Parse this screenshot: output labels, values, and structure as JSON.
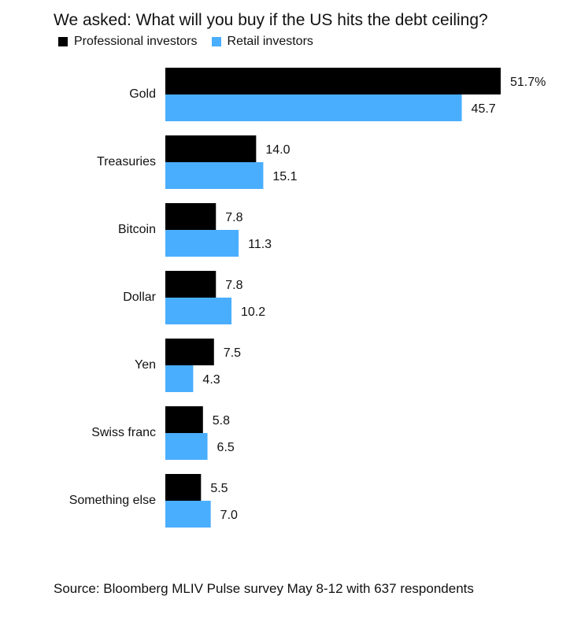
{
  "chart_data": {
    "type": "bar",
    "orientation": "horizontal",
    "title": "We asked: What will you buy if the US hits the debt ceiling?",
    "categories": [
      "Gold",
      "Treasuries",
      "Bitcoin",
      "Dollar",
      "Yen",
      "Swiss franc",
      "Something else"
    ],
    "series": [
      {
        "name": "Professional investors",
        "color": "#000000",
        "values": [
          51.7,
          14.0,
          7.8,
          7.8,
          7.5,
          5.8,
          5.5
        ],
        "labels": [
          "51.7%",
          "14.0",
          "7.8",
          "7.8",
          "7.5",
          "5.8",
          "5.5"
        ]
      },
      {
        "name": "Retail investors",
        "color": "#4aaeff",
        "values": [
          45.7,
          15.1,
          11.3,
          10.2,
          4.3,
          6.5,
          7.0
        ],
        "labels": [
          "45.7",
          "15.1",
          "11.3",
          "10.2",
          "4.3",
          "6.5",
          "7.0"
        ]
      }
    ],
    "xlim": [
      0,
      51.7
    ],
    "legend": "top-left",
    "grid": false,
    "source": "Source: Bloomberg MLIV Pulse survey May 8-12 with 637 respondents"
  }
}
